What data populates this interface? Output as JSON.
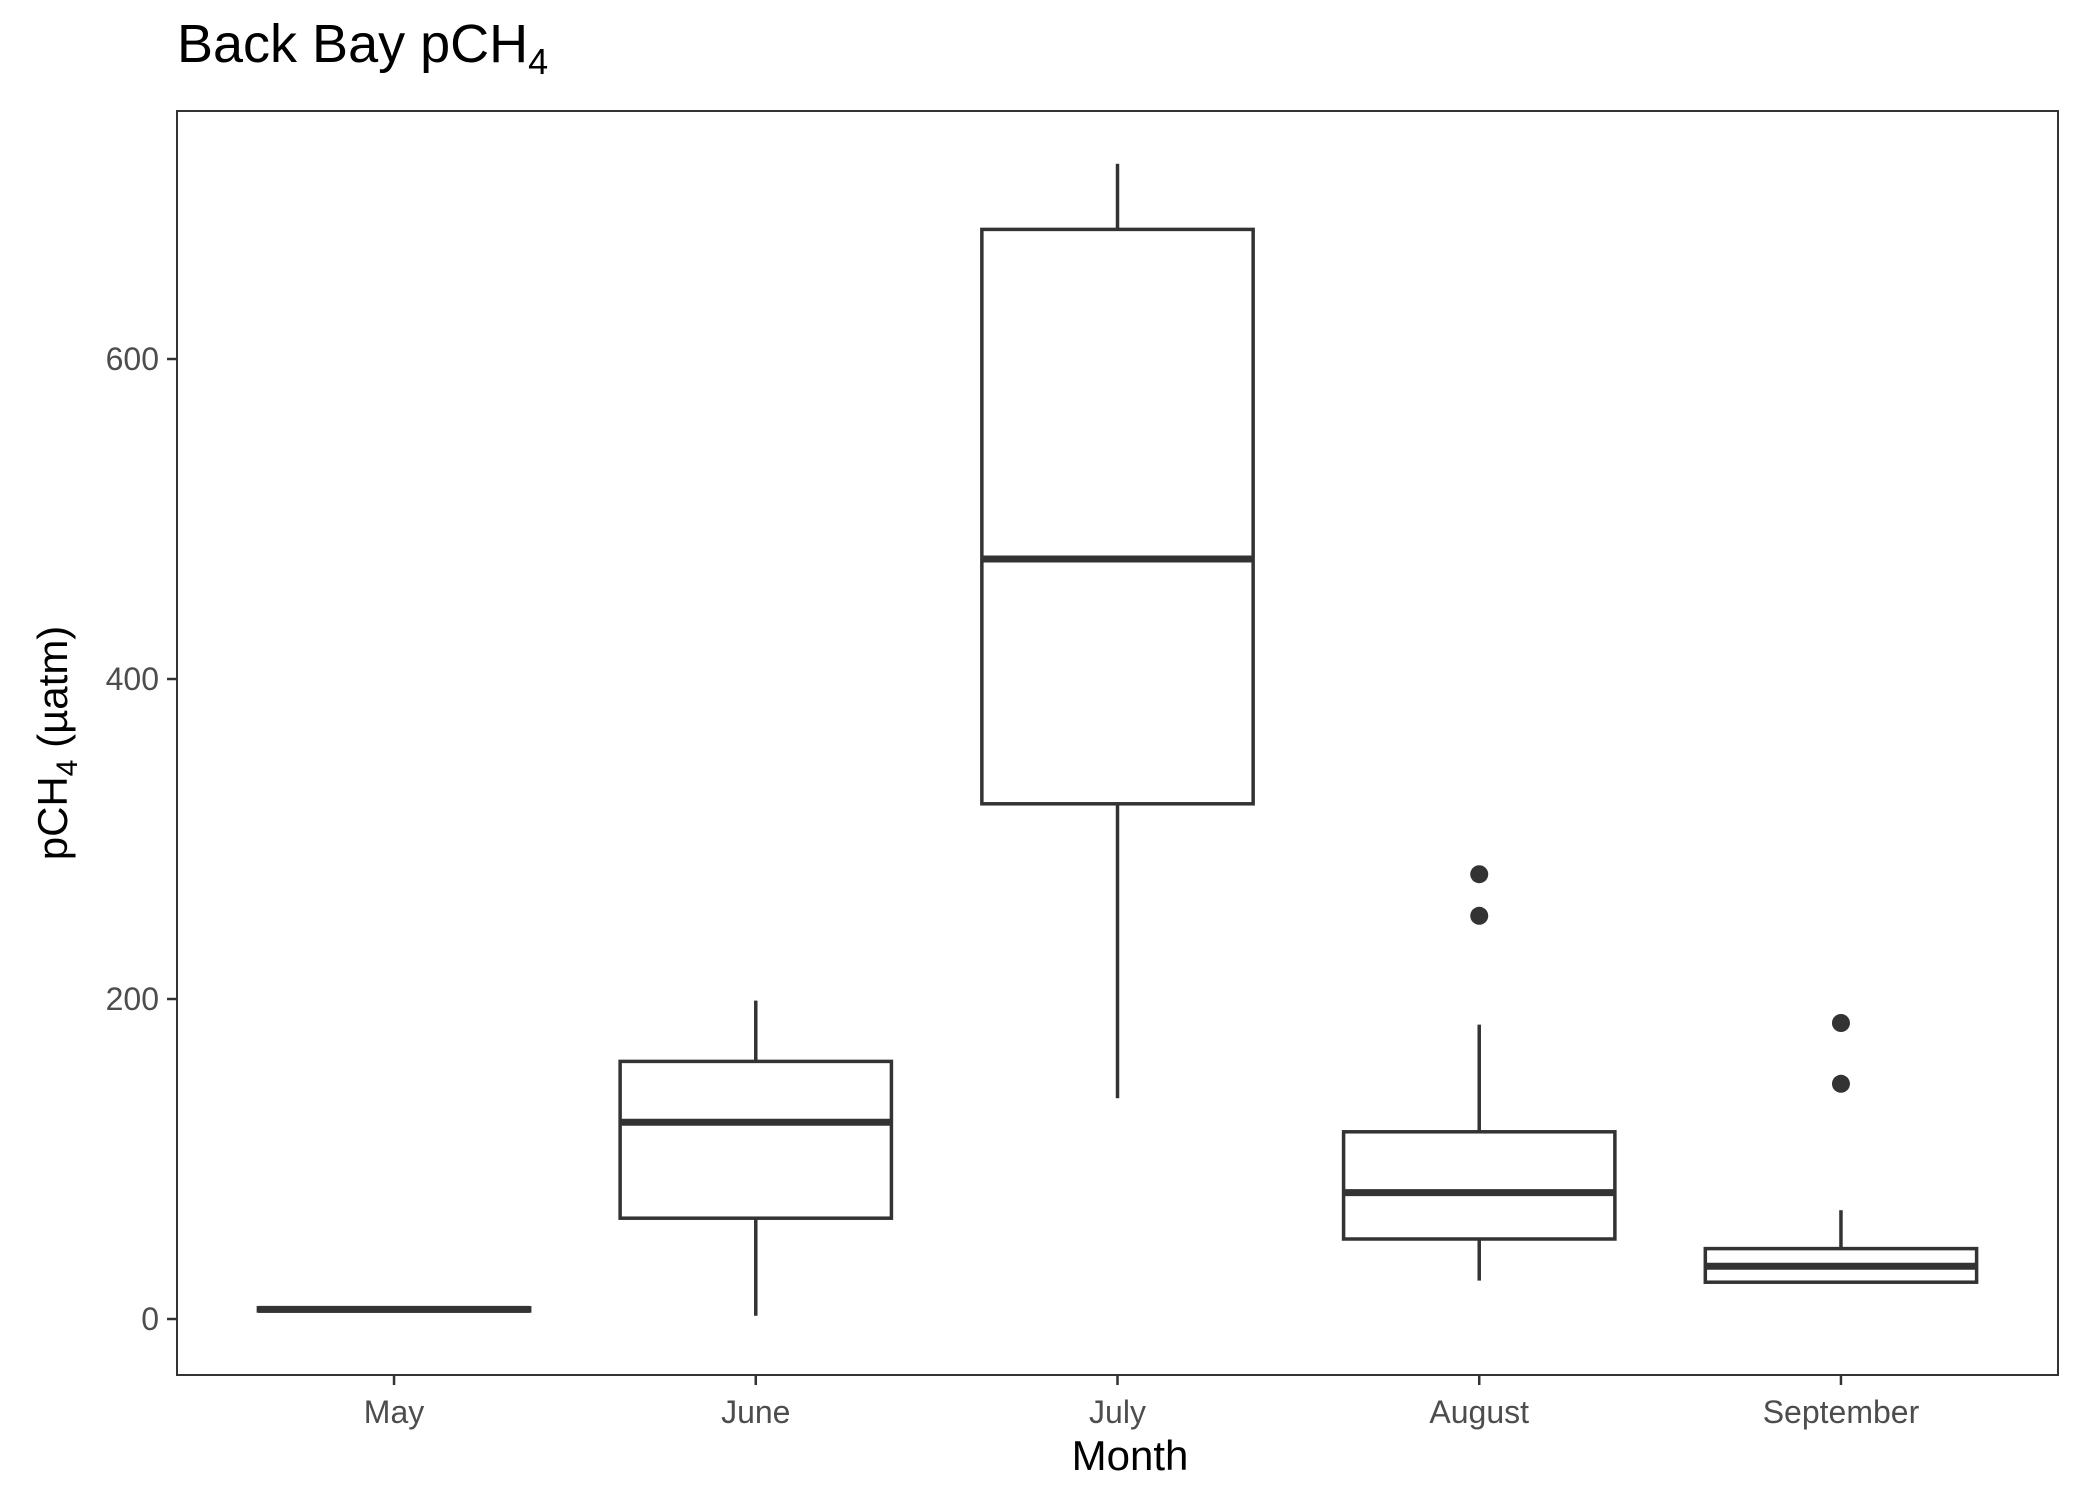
{
  "chart_data": {
    "type": "boxplot",
    "title": "Back Bay pCH",
    "title_sub": "4",
    "xlabel": "Month",
    "ylabel_main": "pCH",
    "ylabel_sub": "4",
    "ylabel_unit": " (µatm)",
    "ylim": [
      -35,
      755
    ],
    "yticks": [
      0,
      200,
      400,
      600
    ],
    "grid": false,
    "colors": {
      "stroke": "#333333",
      "fill": "#ffffff",
      "tick_text": "#4d4d4d"
    },
    "categories": [
      "May",
      "June",
      "July",
      "August",
      "September"
    ],
    "boxes": [
      {
        "category": "May",
        "whisker_low": 5,
        "q1": 5,
        "median": 6,
        "q3": 7,
        "whisker_high": 7,
        "outliers": []
      },
      {
        "category": "June",
        "whisker_low": 2,
        "q1": 63,
        "median": 123,
        "q3": 161,
        "whisker_high": 199,
        "outliers": []
      },
      {
        "category": "July",
        "whisker_low": 138,
        "q1": 322,
        "median": 475,
        "q3": 681,
        "whisker_high": 722,
        "outliers": []
      },
      {
        "category": "August",
        "whisker_low": 24,
        "q1": 50,
        "median": 79,
        "q3": 117,
        "whisker_high": 184,
        "outliers": [
          252,
          278
        ]
      },
      {
        "category": "September",
        "whisker_low": 23,
        "q1": 23,
        "median": 33,
        "q3": 44,
        "whisker_high": 68,
        "outliers": [
          147,
          185
        ]
      }
    ]
  }
}
